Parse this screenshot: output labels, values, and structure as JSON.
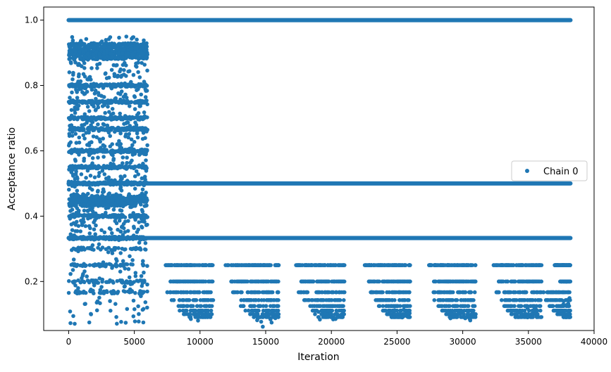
{
  "chart_data": {
    "type": "scatter",
    "title": "",
    "xlabel": "Iteration",
    "ylabel": "Acceptance ratio",
    "xlim": [
      -1900,
      40000
    ],
    "ylim": [
      0.05,
      1.04
    ],
    "xticks": [
      0,
      5000,
      10000,
      15000,
      20000,
      25000,
      30000,
      35000,
      40000
    ],
    "xtick_labels": [
      "0",
      "5000",
      "10000",
      "15000",
      "20000",
      "25000",
      "30000",
      "35000",
      "40000"
    ],
    "yticks": [
      0.2,
      0.4,
      0.6,
      0.8,
      1.0
    ],
    "ytick_labels": [
      "0.2",
      "0.4",
      "0.6",
      "0.8",
      "1.0"
    ],
    "grid": false,
    "legend_position": "center-right",
    "marker_color": "#1f77b4",
    "iterations_total": 38200,
    "burn_in_end": 6000,
    "series": [
      {
        "name": "Chain 0",
        "dense_levels": [
          {
            "y": 1.0,
            "x_ranges": [
              [
                0,
                38200
              ]
            ]
          },
          {
            "y": 0.5,
            "x_ranges": [
              [
                0,
                38200
              ]
            ]
          },
          {
            "y": 0.333,
            "x_ranges": [
              [
                0,
                38200
              ]
            ]
          }
        ],
        "early_phase": {
          "x_range": [
            0,
            6000
          ],
          "y_levels": [
            0.9,
            0.8,
            0.75,
            0.7,
            0.667,
            0.6,
            0.55,
            0.5,
            0.45,
            0.4,
            0.333,
            0.3,
            0.25,
            0.2,
            0.167
          ],
          "sparse_y_range": [
            0.07,
            0.95
          ]
        },
        "cycles": [
          {
            "x_range": [
              7300,
              10000
            ],
            "tail_x_range": [
              9000,
              11000
            ],
            "min_y": 0.08
          },
          {
            "x_range": [
              11900,
              15000
            ],
            "tail_x_range": [
              14000,
              16000
            ],
            "min_y": 0.06
          },
          {
            "x_range": [
              17300,
              20000
            ],
            "tail_x_range": [
              19000,
              21000
            ],
            "min_y": 0.08
          },
          {
            "x_range": [
              22400,
              25000
            ],
            "tail_x_range": [
              24500,
              26000
            ],
            "min_y": 0.09
          },
          {
            "x_range": [
              27400,
              30000
            ],
            "tail_x_range": [
              29000,
              31000
            ],
            "min_y": 0.08
          },
          {
            "x_range": [
              32300,
              35000
            ],
            "tail_x_range": [
              34000,
              36000
            ],
            "min_y": 0.09
          },
          {
            "x_range": [
              37000,
              38200
            ],
            "tail_x_range": [
              37500,
              38200
            ],
            "min_y": 0.12
          }
        ],
        "cycle_y_levels": [
          0.25,
          0.2,
          0.167,
          0.143,
          0.125,
          0.111,
          0.1,
          0.091
        ]
      }
    ]
  }
}
